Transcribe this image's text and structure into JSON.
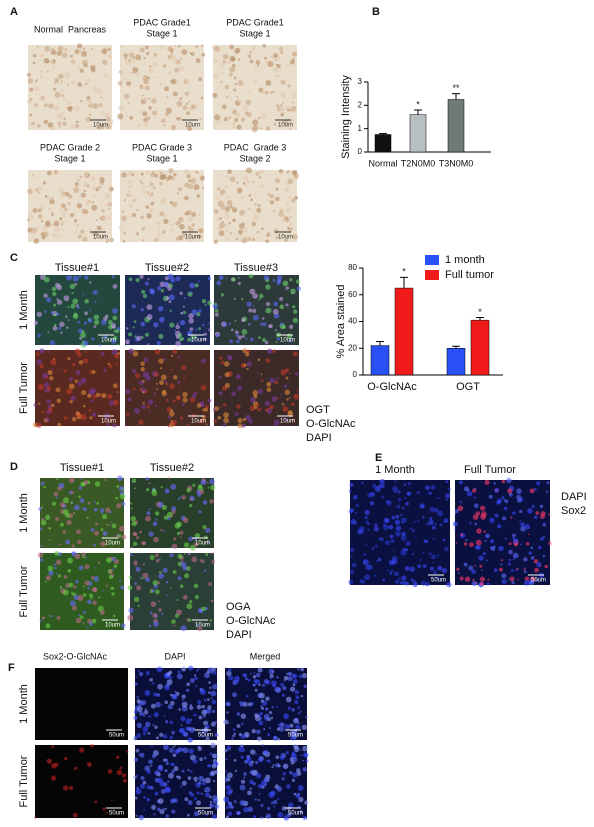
{
  "chart_data": [
    {
      "type": "bar",
      "ylabel": "Staining Intensity",
      "categories": [
        "Normal",
        "T2N0M0",
        "T3N0M0"
      ],
      "values": [
        0.75,
        1.6,
        2.25
      ],
      "errors": [
        0.04,
        0.2,
        0.25
      ],
      "colors": [
        "#111111",
        "#b8bfc0",
        "#6f7a78"
      ],
      "ylim": [
        0,
        3
      ],
      "yticks": [
        0,
        1,
        2,
        3
      ],
      "annotations": [
        {
          "category": "T2N0M0",
          "text": "*"
        },
        {
          "category": "T3N0M0",
          "text": "**"
        }
      ]
    },
    {
      "type": "grouped-bar",
      "ylabel": "% Area stained",
      "categories": [
        "O-GlcNAc",
        "OGT"
      ],
      "series": [
        {
          "name": "1 month",
          "color": "#2850f5",
          "values": [
            22,
            20
          ],
          "errors": [
            3,
            1.5
          ]
        },
        {
          "name": "Full tumor",
          "color": "#f01a1a",
          "values": [
            65,
            41
          ],
          "errors": [
            8,
            2
          ]
        }
      ],
      "ylim": [
        0,
        80
      ],
      "yticks": [
        0,
        20,
        40,
        60,
        80
      ],
      "legend": "top-right",
      "annotations": [
        {
          "category": "O-GlcNAc",
          "text": "*"
        },
        {
          "category": "OGT",
          "text": "*"
        }
      ]
    }
  ],
  "panels": {
    "a": {
      "label": "A",
      "tiles": [
        [
          "Normal  Pancreas"
        ],
        [
          "PDAC Grade1",
          "Stage 1"
        ],
        [
          "PDAC Grade1",
          "Stage 1"
        ],
        [
          "PDAC Grade 2",
          "Stage 1"
        ],
        [
          "PDAC Grade 3",
          "Stage 1"
        ],
        [
          "PDAC  Grade 3",
          "Stage 2"
        ]
      ],
      "scale_bar": "10um"
    },
    "b": {
      "label": "B"
    },
    "c": {
      "label": "C",
      "columns": [
        "Tissue#1",
        "Tissue#2",
        "Tissue#3"
      ],
      "rows": [
        "1 Month",
        "Full Tumor"
      ],
      "scale_bar": "10um",
      "legend": [
        {
          "text": "OGT",
          "color": "#22b422"
        },
        {
          "text": "O-GlcNAc",
          "color": "#e02020"
        },
        {
          "text": "DAPI",
          "color": "#2020d0"
        }
      ]
    },
    "d": {
      "label": "D",
      "columns": [
        "Tissue#1",
        "Tissue#2"
      ],
      "rows": [
        "1 Month",
        "Full Tumor"
      ],
      "scale_bar": "10um",
      "legend": [
        {
          "text": "OGA",
          "color": "#22b422"
        },
        {
          "text": "O-GlcNAc",
          "color": "#e02020"
        },
        {
          "text": "DAPI",
          "color": "#2020d0"
        }
      ]
    },
    "e": {
      "label": "E",
      "columns": [
        "1 Month",
        "Full Tumor"
      ],
      "scale_bar": "50um",
      "legend": [
        {
          "text": "DAPI",
          "color": "#2020d0"
        },
        {
          "text": "Sox2",
          "color": "#e02020"
        }
      ]
    },
    "f": {
      "label": "F",
      "columns": [
        "Sox2-O-GlcNAc",
        "DAPI",
        "Merged"
      ],
      "rows": [
        "1 Month",
        "Full Tumor"
      ],
      "scale_bar": "50um"
    }
  }
}
